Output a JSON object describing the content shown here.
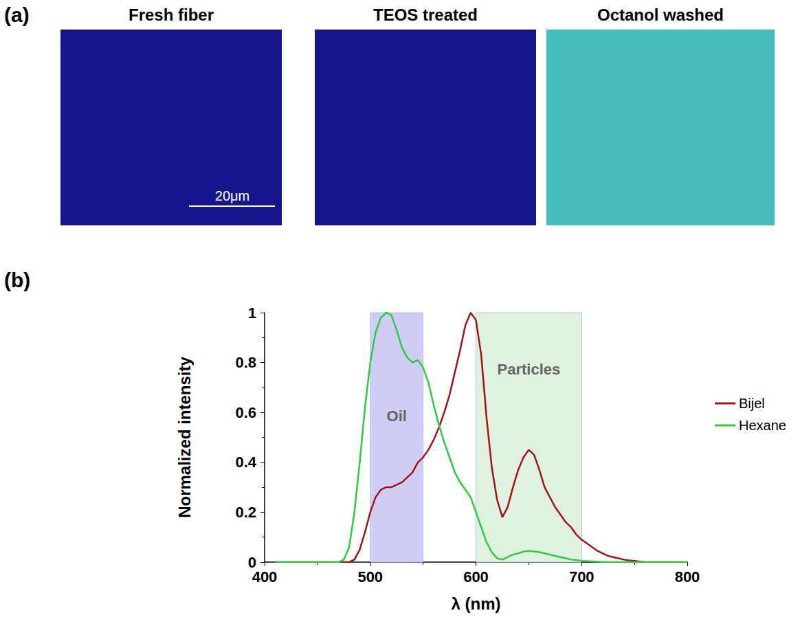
{
  "figure": {
    "panel_labels": [
      "(a)",
      "(b)"
    ]
  },
  "images": {
    "titles": [
      "Fresh fiber",
      "TEOS treated",
      "Octanol washed"
    ],
    "scale_bar": "20μm"
  },
  "chart_data": {
    "type": "line",
    "x_label": "λ (nm)",
    "y_label": "Normalized intensity",
    "x": [
      410,
      470,
      475,
      480,
      485,
      490,
      495,
      500,
      505,
      510,
      515,
      520,
      525,
      530,
      535,
      540,
      545,
      550,
      555,
      560,
      565,
      570,
      575,
      580,
      585,
      590,
      595,
      600,
      605,
      610,
      615,
      620,
      625,
      630,
      635,
      640,
      645,
      650,
      655,
      660,
      665,
      670,
      675,
      680,
      685,
      690,
      695,
      700,
      705,
      710,
      715,
      720,
      725,
      730,
      735,
      740,
      745,
      750,
      755,
      760,
      800
    ],
    "series": [
      {
        "name": "Bijel",
        "color": "#a31515",
        "values": [
          0,
          0,
          0,
          0,
          0.01,
          0.05,
          0.12,
          0.2,
          0.26,
          0.29,
          0.3,
          0.3,
          0.31,
          0.32,
          0.34,
          0.36,
          0.4,
          0.42,
          0.45,
          0.49,
          0.54,
          0.6,
          0.67,
          0.76,
          0.85,
          0.95,
          1.0,
          0.97,
          0.83,
          0.58,
          0.38,
          0.25,
          0.18,
          0.22,
          0.3,
          0.37,
          0.42,
          0.45,
          0.43,
          0.37,
          0.3,
          0.26,
          0.22,
          0.19,
          0.16,
          0.14,
          0.11,
          0.09,
          0.075,
          0.06,
          0.045,
          0.035,
          0.025,
          0.02,
          0.015,
          0.01,
          0.007,
          0.005,
          0.002,
          0,
          0
        ]
      },
      {
        "name": "Hexane",
        "color": "#2ecc40",
        "values": [
          0,
          0,
          0.01,
          0.06,
          0.2,
          0.4,
          0.62,
          0.8,
          0.92,
          0.98,
          1.0,
          0.99,
          0.93,
          0.86,
          0.82,
          0.8,
          0.81,
          0.78,
          0.72,
          0.63,
          0.55,
          0.48,
          0.42,
          0.36,
          0.32,
          0.29,
          0.26,
          0.2,
          0.14,
          0.08,
          0.04,
          0.015,
          0.01,
          0.02,
          0.03,
          0.035,
          0.042,
          0.045,
          0.043,
          0.04,
          0.035,
          0.03,
          0.025,
          0.02,
          0.015,
          0.01,
          0.008,
          0.005,
          0.004,
          0.003,
          0.002,
          0.001,
          0,
          0,
          0,
          0,
          0,
          0,
          0,
          0,
          0
        ]
      }
    ],
    "bands": [
      {
        "label": "Oil",
        "x": [
          500,
          550
        ],
        "color": "#cfcdf6"
      },
      {
        "label": "Particles",
        "x": [
          600,
          700
        ],
        "color": "#dff1df"
      }
    ],
    "xlim": [
      400,
      800
    ],
    "xticks": [
      400,
      500,
      600,
      700,
      800
    ],
    "ylim": [
      0,
      1
    ],
    "yticks": [
      0,
      0.2,
      0.4,
      0.6,
      0.8,
      1
    ],
    "grid": false,
    "legend": "right"
  }
}
